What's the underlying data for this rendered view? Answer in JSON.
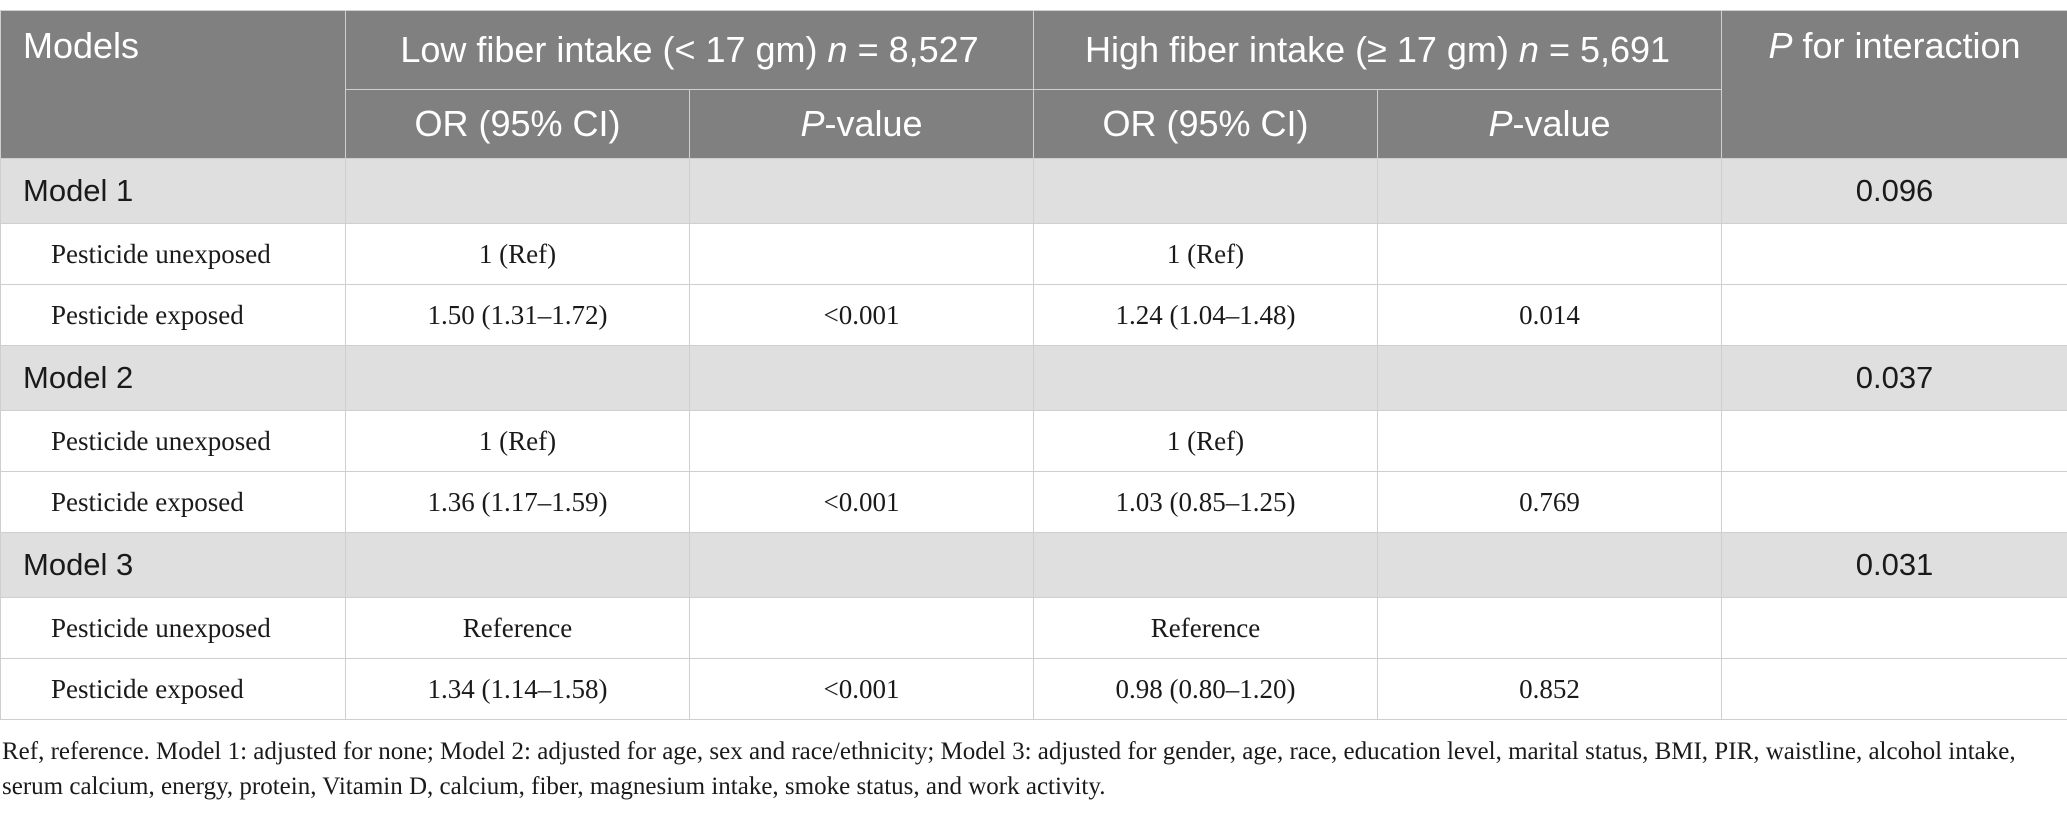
{
  "header": {
    "models": "Models",
    "low_group": {
      "prefix": "Low fiber intake (< 17 gm) ",
      "n_italic": "n",
      "suffix": " = 8,527"
    },
    "high_group": {
      "prefix": "High fiber intake (≥ 17 gm) ",
      "n_italic": "n",
      "suffix": " = 5,691"
    },
    "p_interaction": {
      "italic": "P",
      "rest": " for interaction"
    },
    "or_ci": "OR (95% CI)",
    "p_value": {
      "italic": "P",
      "rest": "-value"
    }
  },
  "models": [
    {
      "name": "Model 1",
      "p_interaction": "0.096",
      "rows": [
        {
          "label": "Pesticide unexposed",
          "low_or": "1 (Ref)",
          "low_p": "",
          "high_or": "1 (Ref)",
          "high_p": ""
        },
        {
          "label": "Pesticide exposed",
          "low_or": "1.50 (1.31–1.72)",
          "low_p": "<0.001",
          "high_or": "1.24 (1.04–1.48)",
          "high_p": "0.014"
        }
      ]
    },
    {
      "name": "Model 2",
      "p_interaction": "0.037",
      "rows": [
        {
          "label": "Pesticide unexposed",
          "low_or": "1 (Ref)",
          "low_p": "",
          "high_or": "1 (Ref)",
          "high_p": ""
        },
        {
          "label": "Pesticide exposed",
          "low_or": "1.36 (1.17–1.59)",
          "low_p": "<0.001",
          "high_or": "1.03 (0.85–1.25)",
          "high_p": "0.769"
        }
      ]
    },
    {
      "name": "Model 3",
      "p_interaction": "0.031",
      "rows": [
        {
          "label": "Pesticide unexposed",
          "low_or": "Reference",
          "low_p": "",
          "high_or": "Reference",
          "high_p": ""
        },
        {
          "label": "Pesticide exposed",
          "low_or": "1.34 (1.14–1.58)",
          "low_p": "<0.001",
          "high_or": "0.98 (0.80–1.20)",
          "high_p": "0.852"
        }
      ]
    }
  ],
  "footnote": "Ref, reference. Model 1: adjusted for none; Model 2: adjusted for age, sex and race/ethnicity; Model 3: adjusted for gender, age, race, education level, marital status, BMI, PIR, waistline, alcohol intake, serum calcium, energy, protein, Vitamin D, calcium, fiber, magnesium intake, smoke status, and work activity.",
  "colors": {
    "header_bg": "#808080",
    "model_row_bg": "#e0dfe0",
    "border": "#cfcfcf"
  }
}
